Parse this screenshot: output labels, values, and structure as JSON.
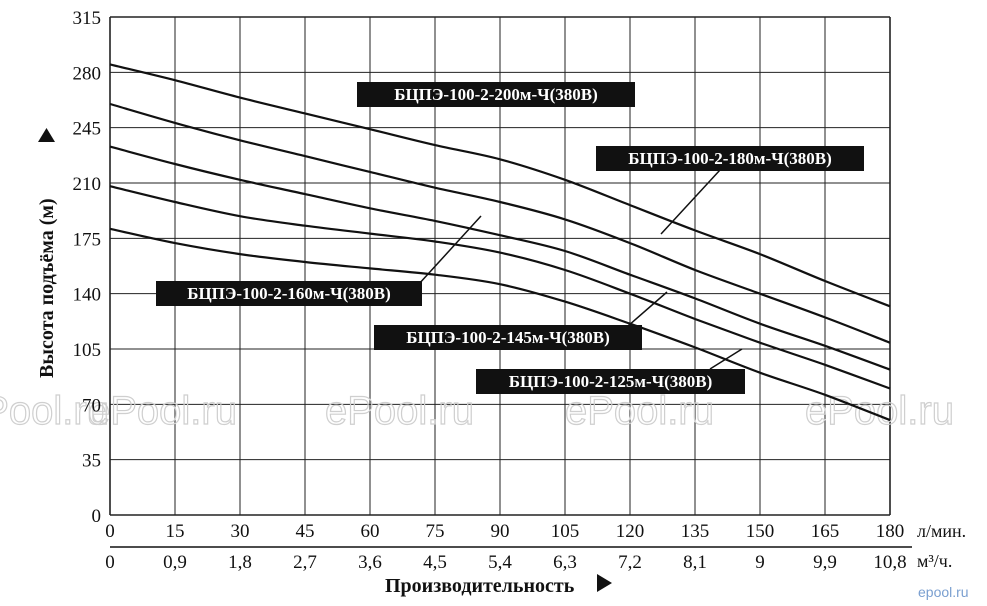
{
  "chart_data": {
    "type": "line",
    "ylabel": "Высота подъёма (м)",
    "xlabel": "Производительность",
    "x_unit_primary": "л/мин.",
    "x_unit_secondary": "м³/ч.",
    "y_ticks": [
      "0",
      "35",
      "70",
      "105",
      "140",
      "175",
      "210",
      "245",
      "280",
      "315"
    ],
    "x_ticks_primary": [
      "0",
      "15",
      "30",
      "45",
      "60",
      "75",
      "90",
      "105",
      "120",
      "135",
      "150",
      "165",
      "180"
    ],
    "x_ticks_secondary": [
      "0",
      "0,9",
      "1,8",
      "2,7",
      "3,6",
      "4,5",
      "5,4",
      "6,3",
      "7,2",
      "8,1",
      "9",
      "9,9",
      "10,8"
    ],
    "xlim": [
      0,
      180
    ],
    "ylim": [
      0,
      315
    ],
    "grid": true,
    "x": [
      0,
      15,
      30,
      45,
      60,
      75,
      90,
      105,
      120,
      135,
      150,
      165,
      180
    ],
    "series": [
      {
        "name": "БЦПЭ-100-2-200м-Ч(380В)",
        "values": [
          285,
          275,
          264,
          254,
          244,
          234,
          225,
          212,
          196,
          180,
          165,
          148,
          132
        ]
      },
      {
        "name": "БЦПЭ-100-2-180м-Ч(380В)",
        "values": [
          260,
          248,
          237,
          227,
          217,
          207,
          198,
          187,
          172,
          155,
          140,
          125,
          109
        ]
      },
      {
        "name": "БЦПЭ-100-2-160м-Ч(380В)",
        "values": [
          233,
          222,
          212,
          203,
          194,
          186,
          177,
          167,
          152,
          137,
          121,
          107,
          92
        ]
      },
      {
        "name": "БЦПЭ-100-2-145м-Ч(380В)",
        "values": [
          208,
          198,
          189,
          183,
          178,
          173,
          166,
          155,
          140,
          124,
          109,
          95,
          80
        ]
      },
      {
        "name": "БЦПЭ-100-2-125м-Ч(380В)",
        "values": [
          181,
          172,
          165,
          160,
          156,
          152,
          146,
          135,
          121,
          106,
          90,
          76,
          60
        ]
      }
    ]
  },
  "watermark": "ePool.ru",
  "brand": "epool.ru"
}
